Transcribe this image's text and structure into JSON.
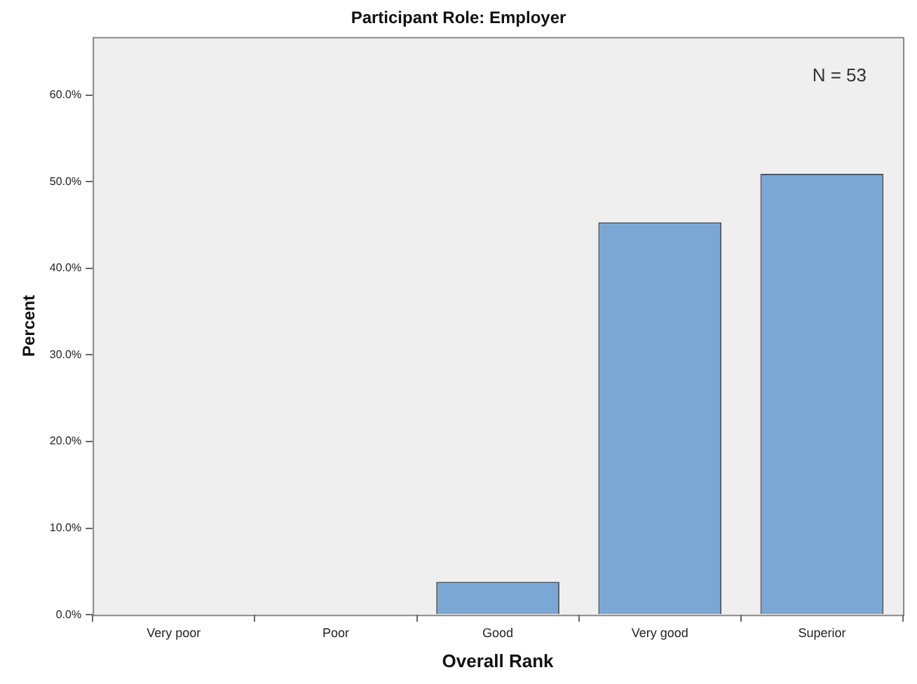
{
  "chart_data": {
    "type": "bar",
    "title": "Participant Role: Employer",
    "xlabel": "Overall Rank",
    "ylabel": "Percent",
    "categories": [
      "Very poor",
      "Poor",
      "Good",
      "Very good",
      "Superior"
    ],
    "values": [
      0,
      0,
      3.8,
      45.3,
      50.9
    ],
    "color": "#7aa7d4",
    "ylim": [
      0,
      66.7
    ],
    "yticks": [
      {
        "value": 0,
        "label": "0.0%"
      },
      {
        "value": 10,
        "label": "10.0%"
      },
      {
        "value": 20,
        "label": "20.0%"
      },
      {
        "value": 30,
        "label": "30.0%"
      },
      {
        "value": 40,
        "label": "40.0%"
      },
      {
        "value": 50,
        "label": "50.0%"
      },
      {
        "value": 60,
        "label": "60.0%"
      }
    ],
    "annotations": [
      "N = 53"
    ],
    "grid": false,
    "legend": false
  }
}
